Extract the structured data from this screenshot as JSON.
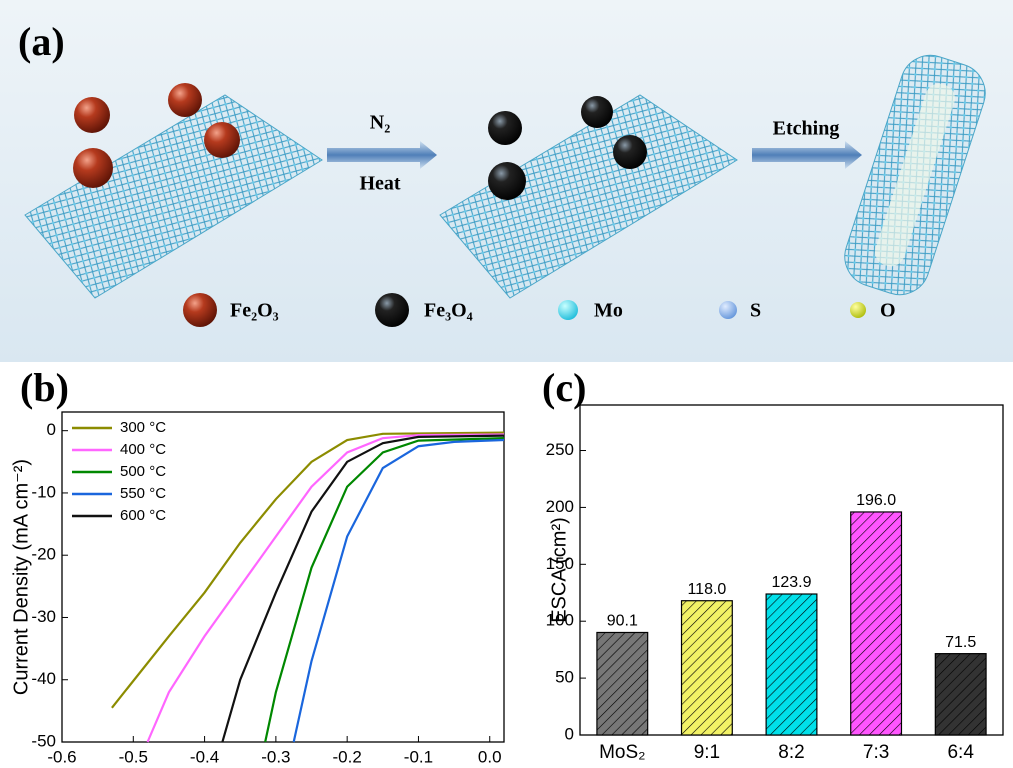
{
  "panel_a": {
    "label": "(a)",
    "arrow_1_top": "N₂",
    "arrow_1_bottom": "Heat",
    "arrow_2_top": "Etching",
    "legend": [
      "Fe₂O₃",
      "Fe₃O₄",
      "Mo",
      "S",
      "O"
    ]
  },
  "chart_data": [
    {
      "type": "line",
      "label": "(b)",
      "y_label": "Current Density (mA cm⁻²)",
      "xlim": [
        -0.6,
        0.02
      ],
      "ylim": [
        -50,
        3
      ],
      "xticks": [
        -0.6,
        -0.5,
        -0.4,
        -0.3,
        -0.2,
        -0.1,
        {
          "value": 0,
          "label": "0.0"
        }
      ],
      "yticks": [
        0,
        -10,
        -20,
        -30,
        -40,
        -50
      ],
      "legend": "upper left",
      "series": [
        {
          "name": "300 °C",
          "color": "#8c8c00",
          "x": [
            -0.53,
            -0.45,
            -0.4,
            -0.35,
            -0.3,
            -0.25,
            -0.2,
            -0.15,
            0.02
          ],
          "values": [
            -44.5,
            -33,
            -26,
            -18,
            -11,
            -5,
            -1.5,
            -0.5,
            -0.3
          ]
        },
        {
          "name": "400 °C",
          "color": "#ff66ff",
          "x": [
            -0.48,
            -0.45,
            -0.4,
            -0.35,
            -0.3,
            -0.25,
            -0.2,
            -0.15,
            -0.1,
            0.02
          ],
          "values": [
            -50,
            -42,
            -33,
            -25,
            -17,
            -9,
            -3.5,
            -1.2,
            -0.7,
            -0.6
          ]
        },
        {
          "name": "500 °C",
          "color": "#008800",
          "x": [
            -0.315,
            -0.3,
            -0.25,
            -0.2,
            -0.15,
            -0.1,
            0.02
          ],
          "values": [
            -50,
            -42,
            -22,
            -9,
            -3.5,
            -1.6,
            -1.2
          ]
        },
        {
          "name": "550 °C",
          "color": "#1a66dd",
          "x": [
            -0.275,
            -0.25,
            -0.2,
            -0.15,
            -0.1,
            -0.05,
            0.02
          ],
          "values": [
            -50,
            -37,
            -17,
            -6,
            -2.5,
            -1.8,
            -1.5
          ]
        },
        {
          "name": "600 °C",
          "color": "#111111",
          "x": [
            -0.375,
            -0.35,
            -0.3,
            -0.25,
            -0.2,
            -0.15,
            -0.1,
            0.02
          ],
          "values": [
            -50,
            -40,
            -26,
            -13,
            -5,
            -2,
            -1,
            -0.8
          ]
        }
      ]
    },
    {
      "type": "bar",
      "label": "(c)",
      "y_label": "ESCA (cm²)",
      "categories": [
        "MoS₂",
        "9:1",
        "8:2",
        "7:3",
        "6:4"
      ],
      "values": [
        90.1,
        118.0,
        123.9,
        196.0,
        71.5
      ],
      "value_labels": [
        "90.1",
        "118.0",
        "123.9",
        "196.0",
        "71.5"
      ],
      "colors": [
        "#777777",
        "#f2f266",
        "#00e0ea",
        "#ff55ff",
        "#333333"
      ],
      "ylim": [
        0,
        290
      ],
      "yticks": [
        0,
        50,
        100,
        150,
        200,
        250
      ]
    }
  ]
}
